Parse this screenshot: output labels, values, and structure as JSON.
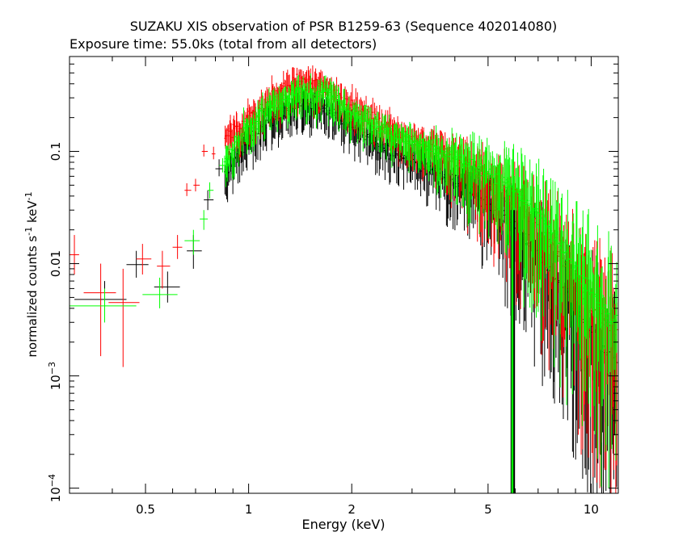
{
  "colors": {
    "background": "#ffffff",
    "axes": "#000000",
    "series_black": "#000000",
    "series_red": "#ff0000",
    "series_green": "#00ff00"
  },
  "chart_data": {
    "type": "scatter",
    "title": "SUZAKU XIS observation of PSR B1259-63 (Sequence 402014080)",
    "subtitle": "Exposure time: 55.0ks (total from all detectors)",
    "xlabel": "Energy (keV)",
    "ylabel_main": "normalized counts s",
    "ylabel_unit": " keV",
    "ylabel_exp": "-1",
    "xscale": "log",
    "yscale": "log",
    "xlim": [
      0.3,
      12
    ],
    "ylim": [
      9e-05,
      0.7
    ],
    "x_ticks": [
      {
        "value": 0.5,
        "label": "0.5"
      },
      {
        "value": 1,
        "label": "1"
      },
      {
        "value": 2,
        "label": "2"
      },
      {
        "value": 5,
        "label": "5"
      },
      {
        "value": 10,
        "label": "10"
      }
    ],
    "y_ticks": [
      {
        "value": 0.0001,
        "base": "10",
        "exp": "−4",
        "label": ""
      },
      {
        "value": 0.001,
        "base": "10",
        "exp": "−3",
        "label": ""
      },
      {
        "value": 0.01,
        "base": "",
        "exp": "",
        "label": "0.01"
      },
      {
        "value": 0.1,
        "base": "",
        "exp": "",
        "label": "0.1"
      }
    ],
    "series": [
      {
        "color": "#000000",
        "low_energy_points": [
          {
            "x": 0.38,
            "xerr": [
              0.31,
              0.44
            ],
            "y": 0.0048,
            "yerr": [
              0.003,
              0.007
            ]
          },
          {
            "x": 0.47,
            "xerr": [
              0.44,
              0.51
            ],
            "y": 0.0098,
            "yerr": [
              0.0075,
              0.013
            ]
          },
          {
            "x": 0.58,
            "xerr": [
              0.53,
              0.63
            ],
            "y": 0.0062,
            "yerr": [
              0.0045,
              0.0085
            ]
          },
          {
            "x": 0.69,
            "xerr": [
              0.66,
              0.73
            ],
            "y": 0.013,
            "yerr": [
              0.009,
              0.018
            ]
          },
          {
            "x": 0.76,
            "xerr": [
              0.74,
              0.79
            ],
            "y": 0.037,
            "yerr": [
              0.03,
              0.045
            ]
          },
          {
            "x": 0.82,
            "xerr": [
              0.8,
              0.84
            ],
            "y": 0.07,
            "yerr": [
              0.06,
              0.085
            ]
          }
        ],
        "envelope": [
          [
            0.85,
            0.06
          ],
          [
            1.0,
            0.13
          ],
          [
            1.2,
            0.21
          ],
          [
            1.4,
            0.26
          ],
          [
            1.7,
            0.25
          ],
          [
            2.0,
            0.17
          ],
          [
            2.5,
            0.11
          ],
          [
            3.0,
            0.085
          ],
          [
            4.0,
            0.055
          ],
          [
            5.0,
            0.035
          ],
          [
            6.0,
            0.022
          ],
          [
            7.0,
            0.012
          ],
          [
            8.0,
            0.007
          ],
          [
            9.0,
            0.004
          ],
          [
            10.0,
            0.0025
          ],
          [
            11.5,
            0.0015
          ]
        ]
      },
      {
        "color": "#ff0000",
        "low_energy_points": [
          {
            "x": 0.31,
            "xerr": [
              0.3,
              0.32
            ],
            "y": 0.012,
            "yerr": [
              0.008,
              0.018
            ]
          },
          {
            "x": 0.37,
            "xerr": [
              0.33,
              0.41
            ],
            "y": 0.0055,
            "yerr": [
              0.0015,
              0.01
            ]
          },
          {
            "x": 0.43,
            "xerr": [
              0.39,
              0.48
            ],
            "y": 0.0045,
            "yerr": [
              0.0012,
              0.009
            ]
          },
          {
            "x": 0.49,
            "xerr": [
              0.47,
              0.52
            ],
            "y": 0.011,
            "yerr": [
              0.008,
              0.015
            ]
          },
          {
            "x": 0.56,
            "xerr": [
              0.54,
              0.59
            ],
            "y": 0.0095,
            "yerr": [
              0.006,
              0.013
            ]
          },
          {
            "x": 0.62,
            "xerr": [
              0.6,
              0.64
            ],
            "y": 0.014,
            "yerr": [
              0.011,
              0.018
            ]
          },
          {
            "x": 0.66,
            "xerr": [
              0.65,
              0.68
            ],
            "y": 0.045,
            "yerr": [
              0.04,
              0.052
            ]
          },
          {
            "x": 0.7,
            "xerr": [
              0.69,
              0.72
            ],
            "y": 0.05,
            "yerr": [
              0.044,
              0.057
            ]
          },
          {
            "x": 0.74,
            "xerr": [
              0.73,
              0.76
            ],
            "y": 0.1,
            "yerr": [
              0.09,
              0.115
            ]
          },
          {
            "x": 0.79,
            "xerr": [
              0.78,
              0.8
            ],
            "y": 0.095,
            "yerr": [
              0.085,
              0.11
            ]
          }
        ],
        "envelope": [
          [
            0.85,
            0.13
          ],
          [
            1.0,
            0.2
          ],
          [
            1.2,
            0.32
          ],
          [
            1.4,
            0.42
          ],
          [
            1.6,
            0.4
          ],
          [
            2.0,
            0.26
          ],
          [
            2.5,
            0.17
          ],
          [
            3.0,
            0.13
          ],
          [
            4.0,
            0.085
          ],
          [
            5.0,
            0.055
          ],
          [
            6.0,
            0.034
          ],
          [
            7.0,
            0.02
          ],
          [
            8.0,
            0.012
          ],
          [
            9.0,
            0.007
          ],
          [
            10.0,
            0.004
          ],
          [
            11.5,
            0.0025
          ]
        ]
      },
      {
        "color": "#00ff00",
        "low_energy_points": [
          {
            "x": 0.38,
            "xerr": [
              0.3,
              0.47
            ],
            "y": 0.0042,
            "yerr": [
              0.003,
              0.006
            ]
          },
          {
            "x": 0.55,
            "xerr": [
              0.49,
              0.62
            ],
            "y": 0.0053,
            "yerr": [
              0.004,
              0.0075
            ]
          },
          {
            "x": 0.69,
            "xerr": [
              0.65,
              0.72
            ],
            "y": 0.016,
            "yerr": [
              0.012,
              0.02
            ]
          },
          {
            "x": 0.74,
            "xerr": [
              0.72,
              0.76
            ],
            "y": 0.025,
            "yerr": [
              0.02,
              0.03
            ]
          },
          {
            "x": 0.77,
            "xerr": [
              0.76,
              0.79
            ],
            "y": 0.045,
            "yerr": [
              0.038,
              0.053
            ]
          },
          {
            "x": 0.84,
            "xerr": [
              0.82,
              0.86
            ],
            "y": 0.075,
            "yerr": [
              0.065,
              0.087
            ]
          }
        ],
        "envelope": [
          [
            0.85,
            0.08
          ],
          [
            1.0,
            0.17
          ],
          [
            1.2,
            0.27
          ],
          [
            1.4,
            0.33
          ],
          [
            1.7,
            0.34
          ],
          [
            2.0,
            0.22
          ],
          [
            2.5,
            0.15
          ],
          [
            3.0,
            0.12
          ],
          [
            4.0,
            0.085
          ],
          [
            5.0,
            0.065
          ],
          [
            6.0,
            0.045
          ],
          [
            7.0,
            0.028
          ],
          [
            8.0,
            0.016
          ],
          [
            9.0,
            0.009
          ],
          [
            10.0,
            0.0055
          ],
          [
            11.5,
            0.003
          ]
        ]
      }
    ]
  }
}
